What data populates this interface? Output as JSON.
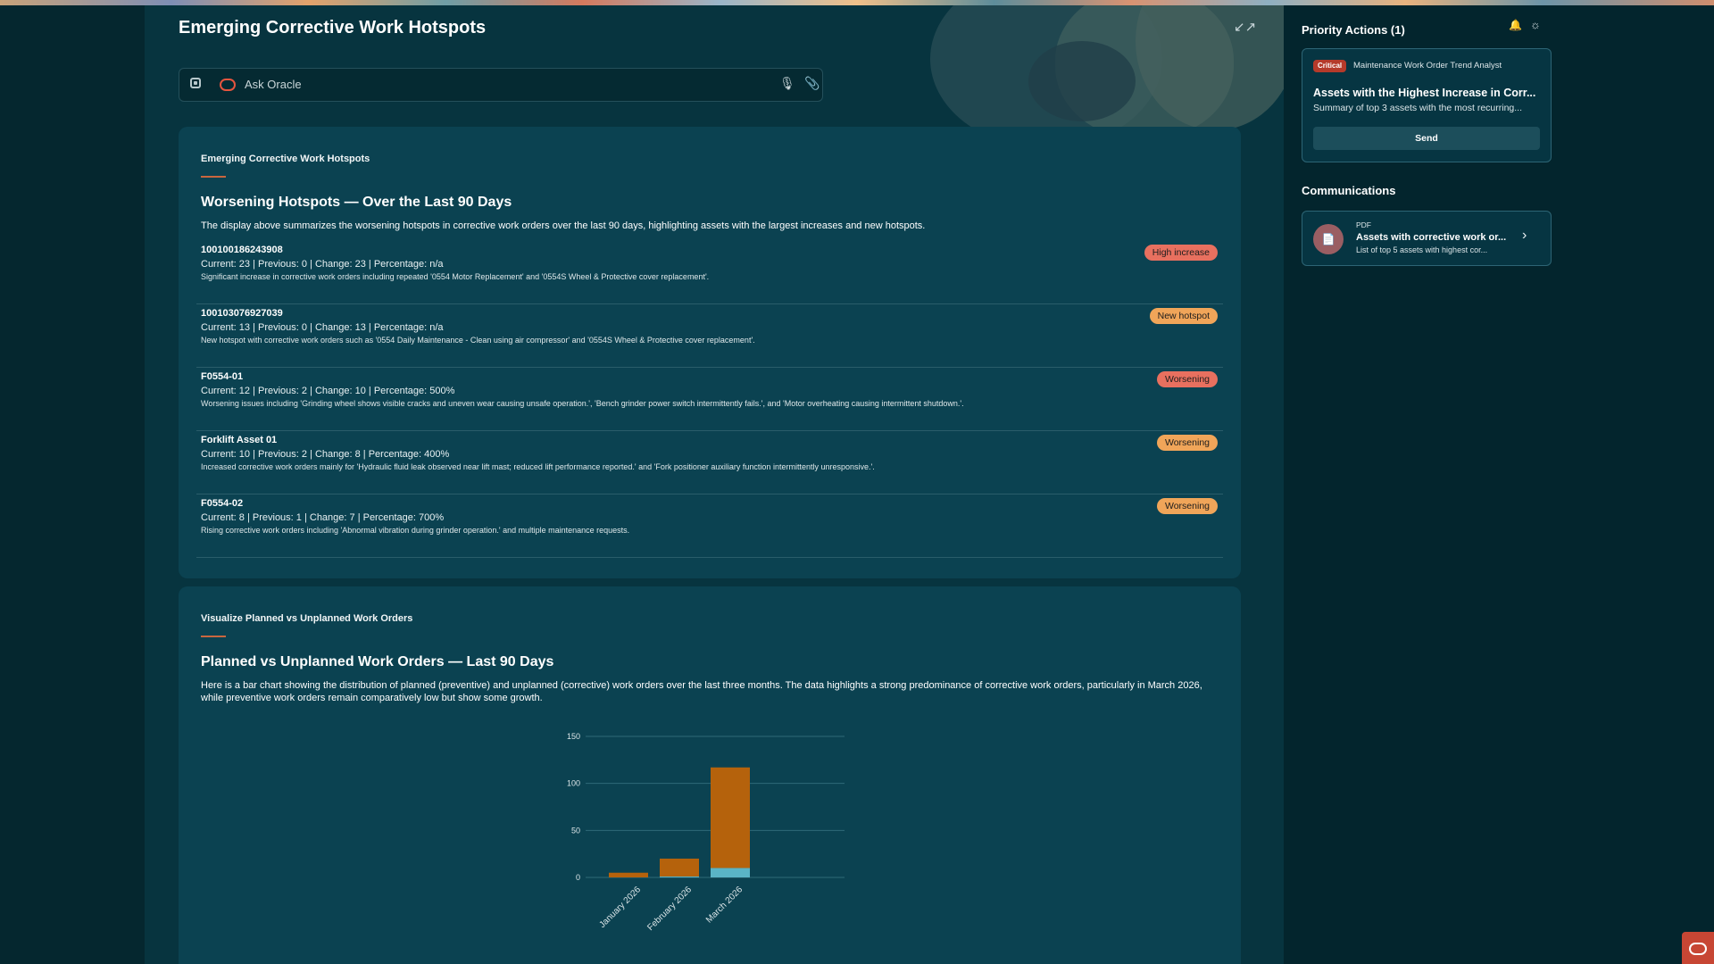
{
  "page": {
    "title": "Emerging Corrective Work Hotspots",
    "ask_placeholder": "Ask Oracle"
  },
  "hotspots_card": {
    "label": "Emerging Corrective Work Hotspots",
    "heading": "Worsening Hotspots — Over the Last 90 Days",
    "description": "The display above summarizes the worsening hotspots in corrective work orders over the last 90 days, highlighting assets with the largest increases and new hotspots.",
    "rows": [
      {
        "id": "100100186243908",
        "stats": "Current: 23 | Previous: 0 | Change: 23 | Percentage: n/a",
        "note": "Significant increase in corrective work orders including repeated '0554 Motor Replacement' and '0554S Wheel & Protective cover replacement'.",
        "badge": "High increase",
        "badge_color": "#e8705f"
      },
      {
        "id": "100103076927039",
        "stats": "Current: 13 | Previous: 0 | Change: 13 | Percentage: n/a",
        "note": "New hotspot with corrective work orders such as '0554 Daily Maintenance - Clean using air compressor' and '0554S Wheel & Protective cover replacement'.",
        "badge": "New hotspot",
        "badge_color": "#f0a559"
      },
      {
        "id": "F0554-01",
        "stats": "Current: 12 | Previous: 2 | Change: 10 | Percentage: 500%",
        "note": "Worsening issues including 'Grinding wheel shows visible cracks and uneven wear causing unsafe operation.', 'Bench grinder power switch intermittently fails.', and 'Motor overheating causing intermittent shutdown.'.",
        "badge": "Worsening",
        "badge_color": "#e8705f"
      },
      {
        "id": "Forklift Asset 01",
        "stats": "Current: 10 | Previous: 2 | Change: 8 | Percentage: 400%",
        "note": "Increased corrective work orders mainly for 'Hydraulic fluid leak observed near lift mast; reduced lift performance reported.' and 'Fork positioner auxiliary function intermittently unresponsive.'.",
        "badge": "Worsening",
        "badge_color": "#f0a559"
      },
      {
        "id": "F0554-02",
        "stats": "Current: 8 | Previous: 1 | Change: 7 | Percentage: 700%",
        "note": "Rising corrective work orders including 'Abnormal vibration during grinder operation.' and multiple maintenance requests.",
        "badge": "Worsening",
        "badge_color": "#f0a559"
      }
    ]
  },
  "chart_card": {
    "label": "Visualize Planned vs Unplanned Work Orders",
    "heading": "Planned vs Unplanned Work Orders — Last 90 Days",
    "description": "Here is a bar chart showing the distribution of planned (preventive) and unplanned (corrective) work orders over the last three months. The data highlights a strong predominance of corrective work orders, particularly in March 2026, while preventive work orders remain comparatively low but show some growth."
  },
  "chart_data": {
    "type": "bar",
    "stacked": true,
    "categories": [
      "January 2026",
      "February 2026",
      "March 2026"
    ],
    "series": [
      {
        "name": "",
        "values": [
          0,
          1,
          10
        ],
        "color": "#5ab4c6"
      },
      {
        "name": "",
        "values": [
          5,
          19,
          107
        ],
        "color": "#b5620c"
      }
    ],
    "yticks": [
      0,
      50,
      100,
      150
    ],
    "ylim": [
      0,
      150
    ],
    "grid": true,
    "title": "",
    "xlabel": "",
    "ylabel": ""
  },
  "right_panel": {
    "priority_title": "Priority Actions (1)",
    "priority": {
      "severity": "Critical",
      "agent": "Maintenance Work Order Trend Analyst",
      "title": "Assets with the Highest Increase in Corr...",
      "summary": "Summary of top 3 assets with the most recurring...",
      "send_label": "Send"
    },
    "communications_title": "Communications",
    "communication": {
      "type": "PDF",
      "name": "Assets with corrective work or...",
      "subtitle": "List of top 5 assets with highest cor..."
    }
  },
  "icons": {
    "ask_left": "panel-icon",
    "oracle": "oracle-logo-icon",
    "mic": "microphone-icon",
    "attach": "paperclip-icon",
    "collapse": "collapse-icon",
    "bell": "bell-icon",
    "theme": "sun-icon",
    "pdf": "document-icon",
    "chevron": "chevron-right-icon"
  }
}
